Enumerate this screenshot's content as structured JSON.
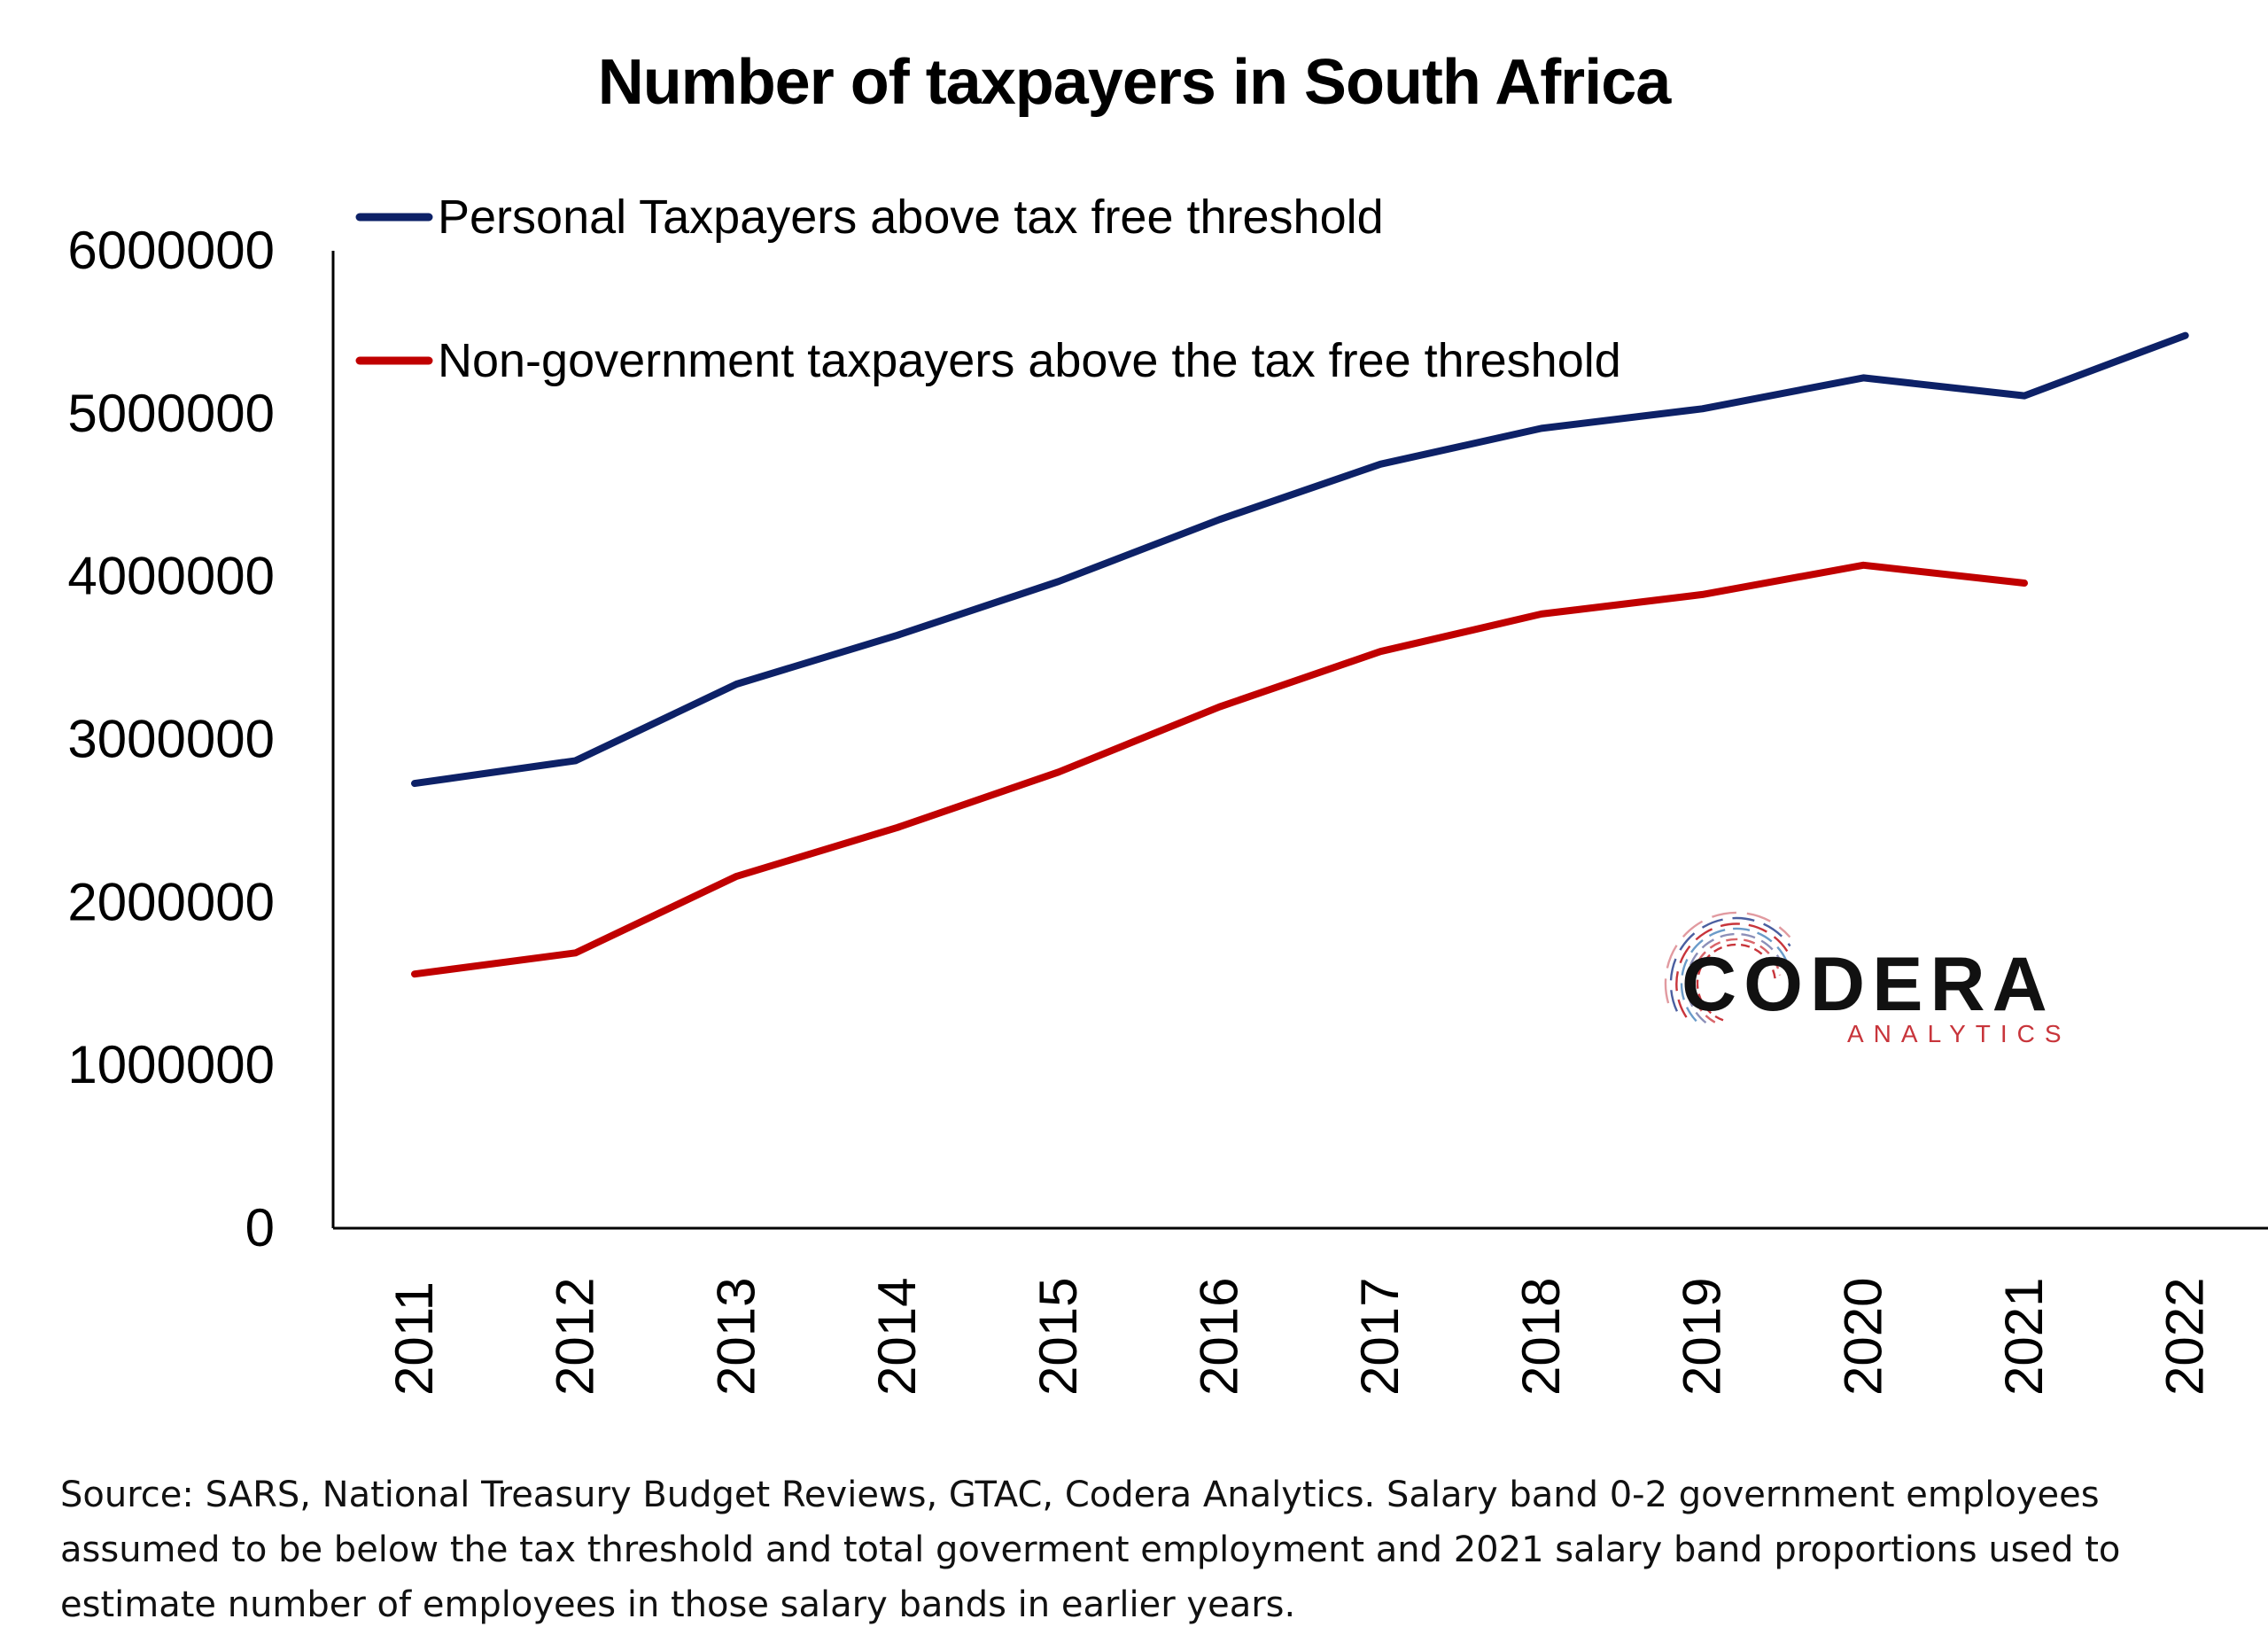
{
  "colors": {
    "personal": "#0d2167",
    "non_government": "#c00000",
    "axis": "#000000",
    "logo_dark": "#111111",
    "logo_sub": "#c8353b"
  },
  "logo": {
    "name": "CODERA",
    "sub": "ANALYTICS",
    "icon": "codera-circuit-ring-icon"
  },
  "source_note": "Source: SARS, National Treasury Budget Reviews, GTAC, Codera Analytics. Salary band 0-2 government employees assumed to be below the tax threshold and total goverment employment and 2021 salary band proportions used to estimate number of employees in those salary bands in earlier years.",
  "chart_data": {
    "type": "line",
    "title": "Number of taxpayers in South Africa",
    "xlabel": "",
    "ylabel": "",
    "categories": [
      "2011",
      "2012",
      "2013",
      "2014",
      "2015",
      "2016",
      "2017",
      "2018",
      "2019",
      "2020",
      "2021",
      "2022"
    ],
    "ylim": [
      0,
      6000000
    ],
    "yticks": [
      "0",
      "1000000",
      "2000000",
      "3000000",
      "4000000",
      "5000000",
      "6000000"
    ],
    "yticks_values": [
      0,
      1000000,
      2000000,
      3000000,
      4000000,
      5000000,
      6000000
    ],
    "grid": false,
    "legend_position": "top-left",
    "series": [
      {
        "name": "Personal Taxpayers above tax free threshold",
        "color": "#0d2167",
        "values": [
          2730000,
          2870000,
          3340000,
          3640000,
          3970000,
          4350000,
          4690000,
          4910000,
          5030000,
          5220000,
          5110000,
          5480000
        ]
      },
      {
        "name": "Non-government taxpayers above the tax free threshold",
        "color": "#c00000",
        "values": [
          1560000,
          1690000,
          2160000,
          2460000,
          2800000,
          3200000,
          3540000,
          3770000,
          3890000,
          4070000,
          3960000,
          null
        ]
      }
    ]
  }
}
